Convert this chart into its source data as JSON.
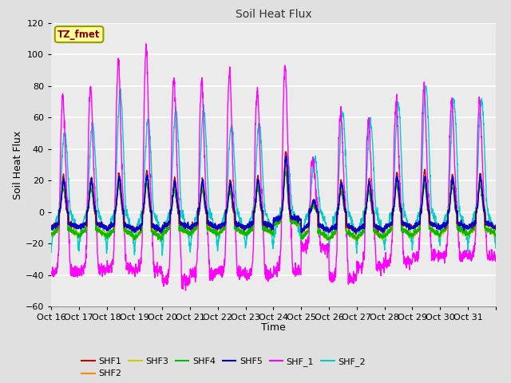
{
  "title": "Soil Heat Flux",
  "xlabel": "Time",
  "ylabel": "Soil Heat Flux",
  "ylim": [
    -60,
    120
  ],
  "annotation_text": "TZ_fmet",
  "annotation_color": "#8B0000",
  "annotation_bg": "#FFFF99",
  "annotation_border": "#999900",
  "series_colors": {
    "SHF1": "#CC0000",
    "SHF2": "#FF8800",
    "SHF3": "#CCCC00",
    "SHF4": "#00BB00",
    "SHF5": "#0000CC",
    "SHF_1": "#FF00FF",
    "SHF_2": "#00CCCC"
  },
  "x_tick_labels": [
    "Oct 16",
    "Oct 17",
    "Oct 18",
    "Oct 19",
    "Oct 20",
    "Oct 21",
    "Oct 22",
    "Oct 23",
    "Oct 24",
    "Oct 25",
    "Oct 26",
    "Oct 27",
    "Oct 28",
    "Oct 29",
    "Oct 30",
    "Oct 31"
  ],
  "bg_color": "#E0E0E0",
  "plot_bg_inner": "#EBEBEB",
  "grid_color": "#FFFFFF",
  "num_days": 16,
  "points_per_day": 144,
  "shf1_peaks": [
    23,
    22,
    25,
    26,
    21,
    21,
    20,
    22,
    38,
    7,
    20,
    20,
    25,
    26,
    24,
    25
  ],
  "shf2_peaks": [
    18,
    18,
    20,
    21,
    17,
    17,
    16,
    18,
    30,
    6,
    16,
    16,
    20,
    20,
    19,
    20
  ],
  "shf3_peaks": [
    16,
    16,
    18,
    19,
    15,
    15,
    14,
    16,
    27,
    5,
    14,
    14,
    18,
    18,
    17,
    18
  ],
  "shf4_peaks": [
    15,
    15,
    17,
    18,
    14,
    14,
    13,
    15,
    25,
    5,
    13,
    13,
    17,
    17,
    16,
    17
  ],
  "shf5_peaks": [
    20,
    20,
    22,
    23,
    19,
    19,
    18,
    20,
    35,
    7,
    18,
    18,
    22,
    22,
    21,
    22
  ],
  "shf_1_peaks": [
    72,
    79,
    97,
    103,
    85,
    82,
    89,
    78,
    93,
    34,
    63,
    57,
    69,
    79,
    70,
    70
  ],
  "shf_2_peaks": [
    50,
    56,
    76,
    58,
    65,
    65,
    55,
    55,
    35,
    34,
    62,
    57,
    69,
    79,
    70,
    71
  ],
  "shf_neg_shf1": [
    -10,
    -10,
    -11,
    -12,
    -10,
    -10,
    -10,
    -10,
    -5,
    -12,
    -12,
    -12,
    -10,
    -10,
    -10,
    -10
  ],
  "shf_neg_shf2": [
    -15,
    -15,
    -16,
    -17,
    -14,
    -14,
    -14,
    -14,
    -8,
    -17,
    -17,
    -17,
    -15,
    -15,
    -14,
    -14
  ],
  "shf_neg_shf_1": [
    -38,
    -37,
    -36,
    -37,
    -44,
    -39,
    -38,
    -40,
    -38,
    -23,
    -42,
    -35,
    -32,
    -28,
    -28,
    -28
  ],
  "shf_neg_shf_2": [
    -28,
    -27,
    -28,
    -28,
    -28,
    -28,
    -26,
    -26,
    -22,
    -20,
    -28,
    -26,
    -26,
    -24,
    -24,
    -25
  ]
}
